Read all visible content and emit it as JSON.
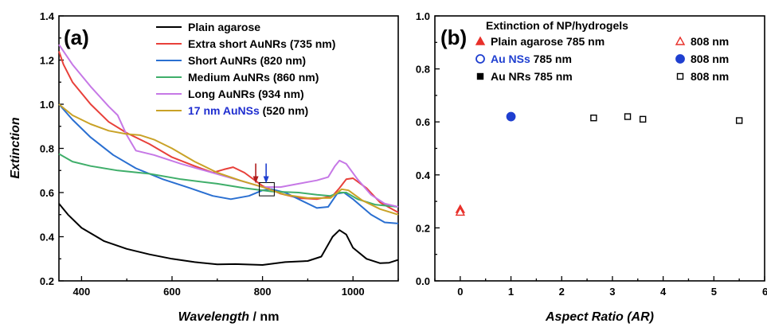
{
  "chart_data": [
    {
      "type": "line",
      "panel_label": "(a)",
      "xlabel_main": "Wavelength",
      "xlabel_unit": " / nm",
      "ylabel": "Extinction",
      "xlim": [
        350,
        1100
      ],
      "ylim": [
        0.2,
        1.4
      ],
      "xticks": [
        400,
        600,
        800,
        1000
      ],
      "yticks": [
        0.2,
        0.4,
        0.6,
        0.8,
        1.0,
        1.2,
        1.4
      ],
      "series": [
        {
          "name": "Plain agarose",
          "color": "#000000",
          "points": [
            [
              350,
              0.55
            ],
            [
              370,
              0.5
            ],
            [
              400,
              0.44
            ],
            [
              450,
              0.38
            ],
            [
              500,
              0.345
            ],
            [
              550,
              0.32
            ],
            [
              600,
              0.3
            ],
            [
              650,
              0.285
            ],
            [
              700,
              0.275
            ],
            [
              740,
              0.276
            ],
            [
              800,
              0.272
            ],
            [
              850,
              0.285
            ],
            [
              900,
              0.29
            ],
            [
              930,
              0.31
            ],
            [
              955,
              0.4
            ],
            [
              970,
              0.43
            ],
            [
              985,
              0.41
            ],
            [
              1000,
              0.35
            ],
            [
              1030,
              0.3
            ],
            [
              1060,
              0.28
            ],
            [
              1080,
              0.282
            ],
            [
              1100,
              0.295
            ]
          ]
        },
        {
          "name": "Extra short AuNRs (735 nm)",
          "color": "#e8403a",
          "points": [
            [
              350,
              1.24
            ],
            [
              360,
              1.18
            ],
            [
              380,
              1.1
            ],
            [
              420,
              1.0
            ],
            [
              460,
              0.92
            ],
            [
              500,
              0.87
            ],
            [
              550,
              0.82
            ],
            [
              600,
              0.76
            ],
            [
              650,
              0.72
            ],
            [
              690,
              0.69
            ],
            [
              715,
              0.705
            ],
            [
              735,
              0.715
            ],
            [
              760,
              0.69
            ],
            [
              800,
              0.63
            ],
            [
              840,
              0.595
            ],
            [
              880,
              0.575
            ],
            [
              920,
              0.57
            ],
            [
              955,
              0.585
            ],
            [
              970,
              0.62
            ],
            [
              985,
              0.66
            ],
            [
              1000,
              0.665
            ],
            [
              1030,
              0.62
            ],
            [
              1060,
              0.555
            ],
            [
              1100,
              0.51
            ]
          ]
        },
        {
          "name": "Short AuNRs (820 nm)",
          "color": "#2a6fd1",
          "points": [
            [
              350,
              1.0
            ],
            [
              380,
              0.93
            ],
            [
              420,
              0.85
            ],
            [
              470,
              0.77
            ],
            [
              520,
              0.71
            ],
            [
              580,
              0.66
            ],
            [
              640,
              0.62
            ],
            [
              690,
              0.585
            ],
            [
              730,
              0.57
            ],
            [
              770,
              0.585
            ],
            [
              800,
              0.61
            ],
            [
              820,
              0.615
            ],
            [
              850,
              0.6
            ],
            [
              880,
              0.57
            ],
            [
              920,
              0.53
            ],
            [
              945,
              0.535
            ],
            [
              965,
              0.595
            ],
            [
              980,
              0.6
            ],
            [
              1000,
              0.57
            ],
            [
              1040,
              0.5
            ],
            [
              1070,
              0.465
            ],
            [
              1100,
              0.46
            ]
          ]
        },
        {
          "name": "Medium AuNRs (860 nm)",
          "color": "#3fae6a",
          "points": [
            [
              350,
              0.775
            ],
            [
              380,
              0.74
            ],
            [
              420,
              0.72
            ],
            [
              480,
              0.7
            ],
            [
              550,
              0.685
            ],
            [
              620,
              0.66
            ],
            [
              700,
              0.64
            ],
            [
              760,
              0.62
            ],
            [
              820,
              0.605
            ],
            [
              880,
              0.6
            ],
            [
              920,
              0.59
            ],
            [
              950,
              0.585
            ],
            [
              970,
              0.6
            ],
            [
              985,
              0.6
            ],
            [
              1010,
              0.57
            ],
            [
              1050,
              0.545
            ],
            [
              1100,
              0.535
            ]
          ]
        },
        {
          "name": "Long AuNRs (934 nm)",
          "color": "#c678e6",
          "points": [
            [
              350,
              1.27
            ],
            [
              380,
              1.18
            ],
            [
              420,
              1.08
            ],
            [
              460,
              0.99
            ],
            [
              480,
              0.95
            ],
            [
              500,
              0.86
            ],
            [
              520,
              0.79
            ],
            [
              560,
              0.77
            ],
            [
              620,
              0.73
            ],
            [
              680,
              0.695
            ],
            [
              740,
              0.66
            ],
            [
              800,
              0.625
            ],
            [
              840,
              0.625
            ],
            [
              880,
              0.64
            ],
            [
              920,
              0.655
            ],
            [
              945,
              0.67
            ],
            [
              960,
              0.72
            ],
            [
              970,
              0.745
            ],
            [
              985,
              0.73
            ],
            [
              1010,
              0.66
            ],
            [
              1040,
              0.59
            ],
            [
              1070,
              0.55
            ],
            [
              1100,
              0.535
            ]
          ]
        },
        {
          "name": "17 nm AuNSs (520 nm)",
          "color": "#c9a227",
          "points": [
            [
              350,
              1.0
            ],
            [
              380,
              0.95
            ],
            [
              420,
              0.91
            ],
            [
              460,
              0.88
            ],
            [
              500,
              0.865
            ],
            [
              530,
              0.86
            ],
            [
              560,
              0.84
            ],
            [
              600,
              0.8
            ],
            [
              650,
              0.74
            ],
            [
              700,
              0.69
            ],
            [
              750,
              0.655
            ],
            [
              800,
              0.625
            ],
            [
              850,
              0.59
            ],
            [
              900,
              0.575
            ],
            [
              950,
              0.575
            ],
            [
              975,
              0.615
            ],
            [
              990,
              0.61
            ],
            [
              1020,
              0.565
            ],
            [
              1060,
              0.525
            ],
            [
              1100,
              0.5
            ]
          ]
        }
      ],
      "legend_title_segments": [
        {
          "text": "17 nm AuNSs",
          "color": "#1f2ed0"
        },
        {
          "text": " (520 nm)",
          "color": "#000000"
        }
      ],
      "markers": {
        "arrows": [
          {
            "x": 785,
            "color": "#b01c1c"
          },
          {
            "x": 808,
            "color": "#1f3fd0"
          }
        ],
        "box_x": [
          793,
          826
        ],
        "box_y": [
          0.585,
          0.645
        ]
      },
      "legend": "top-right",
      "grid": false
    },
    {
      "type": "scatter",
      "panel_label": "(b)",
      "xlabel": "Aspect Ratio (AR)",
      "ylabel": "",
      "xlim": [
        -0.5,
        6
      ],
      "ylim": [
        0.0,
        1.0
      ],
      "xticks": [
        0,
        1,
        2,
        3,
        4,
        5,
        6
      ],
      "yticks": [
        0.0,
        0.2,
        0.4,
        0.6,
        0.8,
        1.0
      ],
      "legend_title": "Extinction of NP/hydrogels",
      "legend": "top",
      "grid": false,
      "series": [
        {
          "name": "Plain agarose 785 nm",
          "color": "#e8302a",
          "marker": "triangle",
          "filled": true,
          "points": [
            [
              0,
              0.27
            ]
          ]
        },
        {
          "name": "808 nm",
          "color": "#e8302a",
          "marker": "triangle",
          "filled": false,
          "points": [
            [
              0,
              0.26
            ]
          ]
        },
        {
          "name": "785 nm",
          "label_prefix": "Au NSs",
          "color": "#1f3fd0",
          "marker": "circle",
          "filled": true,
          "points": [
            [
              1,
              0.62
            ]
          ]
        },
        {
          "name": "808 nm",
          "color": "#1f3fd0",
          "marker": "circle",
          "filled": false,
          "points": []
        },
        {
          "name": "Au NRs 785 nm",
          "color": "#000000",
          "marker": "square",
          "filled": true,
          "points": []
        },
        {
          "name": "808 nm",
          "color": "#000000",
          "marker": "square",
          "filled": false,
          "points": [
            [
              2.63,
              0.615
            ],
            [
              3.3,
              0.62
            ],
            [
              3.6,
              0.61
            ],
            [
              5.5,
              0.605
            ]
          ]
        }
      ],
      "legend_entries": [
        {
          "label": "Plain agarose 785 nm",
          "label_color": "#000000",
          "marker": "triangle",
          "filled": true,
          "color": "#e8302a"
        },
        {
          "label": "808 nm",
          "label_color": "#000000",
          "marker": "triangle",
          "filled": false,
          "color": "#e8302a"
        },
        {
          "label": "Au NSs",
          "label_color": "#1f3fd0",
          "suffix": " 785 nm",
          "marker": "circle",
          "filled": false,
          "color": "#1f3fd0"
        },
        {
          "label": "808 nm",
          "label_color": "#000000",
          "marker": "circle",
          "filled": true,
          "color": "#1f3fd0"
        },
        {
          "label": "Au NRs 785 nm",
          "label_color": "#000000",
          "marker": "square",
          "filled": true,
          "color": "#000000"
        },
        {
          "label": "808 nm",
          "label_color": "#000000",
          "marker": "square",
          "filled": false,
          "color": "#000000"
        }
      ]
    }
  ]
}
